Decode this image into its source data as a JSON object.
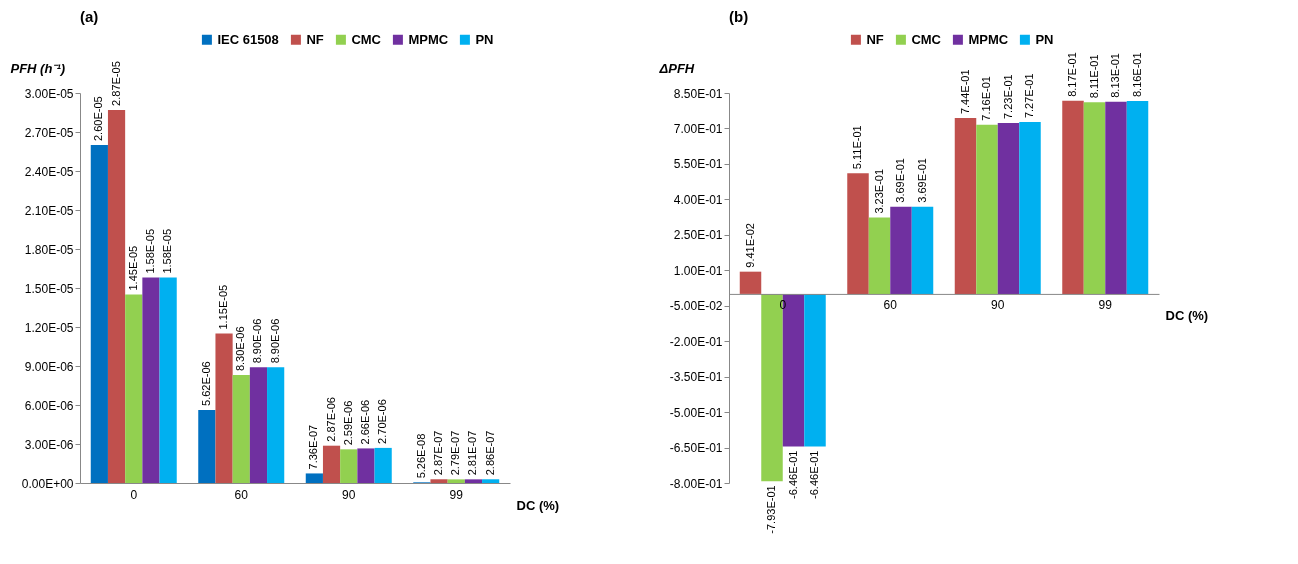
{
  "chart_data": [
    {
      "type": "bar",
      "title": "(a)",
      "ylabel": "PFH (h⁻¹)",
      "xlabel": "DC (%)",
      "categories": [
        "0",
        "60",
        "90",
        "99"
      ],
      "legend": "top",
      "ylim": [
        0,
        3e-05
      ],
      "yticks": [
        {
          "value": 0,
          "label": "0.00E+00"
        },
        {
          "value": 3e-06,
          "label": "3.00E-06"
        },
        {
          "value": 6e-06,
          "label": "6.00E-06"
        },
        {
          "value": 9e-06,
          "label": "9.00E-06"
        },
        {
          "value": 1.2e-05,
          "label": "1.20E-05"
        },
        {
          "value": 1.5e-05,
          "label": "1.50E-05"
        },
        {
          "value": 1.8e-05,
          "label": "1.80E-05"
        },
        {
          "value": 2.1e-05,
          "label": "2.10E-05"
        },
        {
          "value": 2.4e-05,
          "label": "2.40E-05"
        },
        {
          "value": 2.7e-05,
          "label": "2.70E-05"
        },
        {
          "value": 3e-05,
          "label": "3.00E-05"
        }
      ],
      "series": [
        {
          "name": "IEC 61508",
          "color": "#0070c0",
          "values": [
            2.6e-05,
            5.62e-06,
            7.36e-07,
            5.26e-08
          ],
          "value_labels": [
            "2.60E-05",
            "5.62E-06",
            "7.36E-07",
            "5.26E-08"
          ]
        },
        {
          "name": "NF",
          "color": "#c0504d",
          "values": [
            2.87e-05,
            1.15e-05,
            2.87e-06,
            2.87e-07
          ],
          "value_labels": [
            "2.87E-05",
            "1.15E-05",
            "2.87E-06",
            "2.87E-07"
          ]
        },
        {
          "name": "CMC",
          "color": "#92d050",
          "values": [
            1.45e-05,
            8.3e-06,
            2.59e-06,
            2.79e-07
          ],
          "value_labels": [
            "1.45E-05",
            "8.30E-06",
            "2.59E-06",
            "2.79E-07"
          ]
        },
        {
          "name": "MPMC",
          "color": "#7030a0",
          "values": [
            1.58e-05,
            8.9e-06,
            2.66e-06,
            2.81e-07
          ],
          "value_labels": [
            "1.58E-05",
            "8.90E-06",
            "2.66E-06",
            "2.81E-07"
          ]
        },
        {
          "name": "PN",
          "color": "#00b0f0",
          "values": [
            1.58e-05,
            8.9e-06,
            2.7e-06,
            2.86e-07
          ],
          "value_labels": [
            "1.58E-05",
            "8.90E-06",
            "2.70E-06",
            "2.86E-07"
          ]
        }
      ]
    },
    {
      "type": "bar",
      "title": "(b)",
      "ylabel": "ΔPFH",
      "xlabel": "DC (%)",
      "categories": [
        "0",
        "60",
        "90",
        "99"
      ],
      "legend": "top",
      "ylim": [
        -0.8,
        0.85
      ],
      "yticks": [
        {
          "value": -0.8,
          "label": "-8.00E-01"
        },
        {
          "value": -0.65,
          "label": "-6.50E-01"
        },
        {
          "value": -0.5,
          "label": "-5.00E-01"
        },
        {
          "value": -0.35,
          "label": "-3.50E-01"
        },
        {
          "value": -0.2,
          "label": "-2.00E-01"
        },
        {
          "value": -0.05,
          "label": "-5.00E-02"
        },
        {
          "value": 0.1,
          "label": "1.00E-01"
        },
        {
          "value": 0.25,
          "label": "2.50E-01"
        },
        {
          "value": 0.4,
          "label": "4.00E-01"
        },
        {
          "value": 0.55,
          "label": "5.50E-01"
        },
        {
          "value": 0.7,
          "label": "7.00E-01"
        },
        {
          "value": 0.85,
          "label": "8.50E-01"
        }
      ],
      "series": [
        {
          "name": "NF",
          "color": "#c0504d",
          "values": [
            0.0941,
            0.511,
            0.744,
            0.817
          ],
          "value_labels": [
            "9.41E-02",
            "5.11E-01",
            "7.44E-01",
            "8.17E-01"
          ]
        },
        {
          "name": "CMC",
          "color": "#92d050",
          "values": [
            -0.793,
            0.323,
            0.716,
            0.811
          ],
          "value_labels": [
            "-7.93E-01",
            "3.23E-01",
            "7.16E-01",
            "8.11E-01"
          ]
        },
        {
          "name": "MPMC",
          "color": "#7030a0",
          "values": [
            -0.646,
            0.369,
            0.723,
            0.813
          ],
          "value_labels": [
            "-6.46E-01",
            "3.69E-01",
            "7.23E-01",
            "8.13E-01"
          ]
        },
        {
          "name": "PN",
          "color": "#00b0f0",
          "values": [
            -0.646,
            0.369,
            0.727,
            0.816
          ],
          "value_labels": [
            "-6.46E-01",
            "3.69E-01",
            "7.27E-01",
            "8.16E-01"
          ]
        }
      ]
    }
  ]
}
